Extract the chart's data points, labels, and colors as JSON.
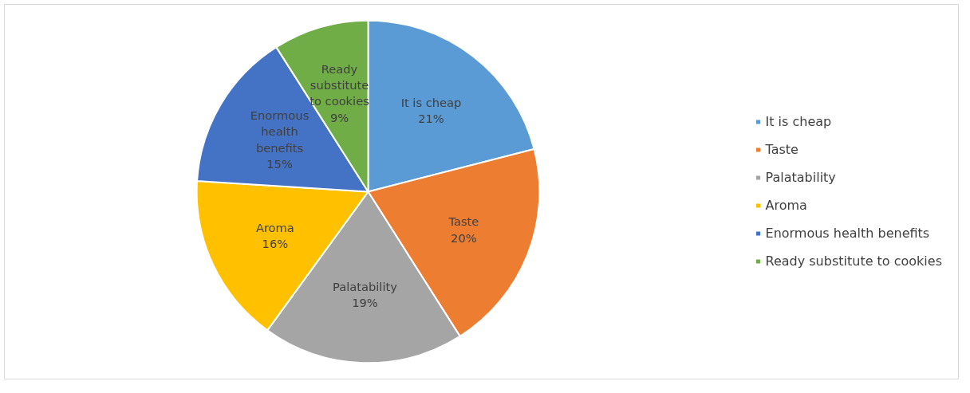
{
  "chart_data": {
    "type": "pie",
    "categories": [
      "It is cheap",
      "Taste",
      "Palatability",
      "Aroma",
      "Enormous health benefits",
      "Ready substitute to cookies"
    ],
    "values": [
      21,
      20,
      19,
      16,
      15,
      9
    ],
    "value_labels": [
      "21%",
      "20%",
      "19%",
      "16%",
      "15%",
      "9%"
    ],
    "colors": [
      "#5b9bd5",
      "#ed7d31",
      "#a5a5a5",
      "#ffc000",
      "#4472c4",
      "#70ad47"
    ],
    "legend": "right"
  }
}
